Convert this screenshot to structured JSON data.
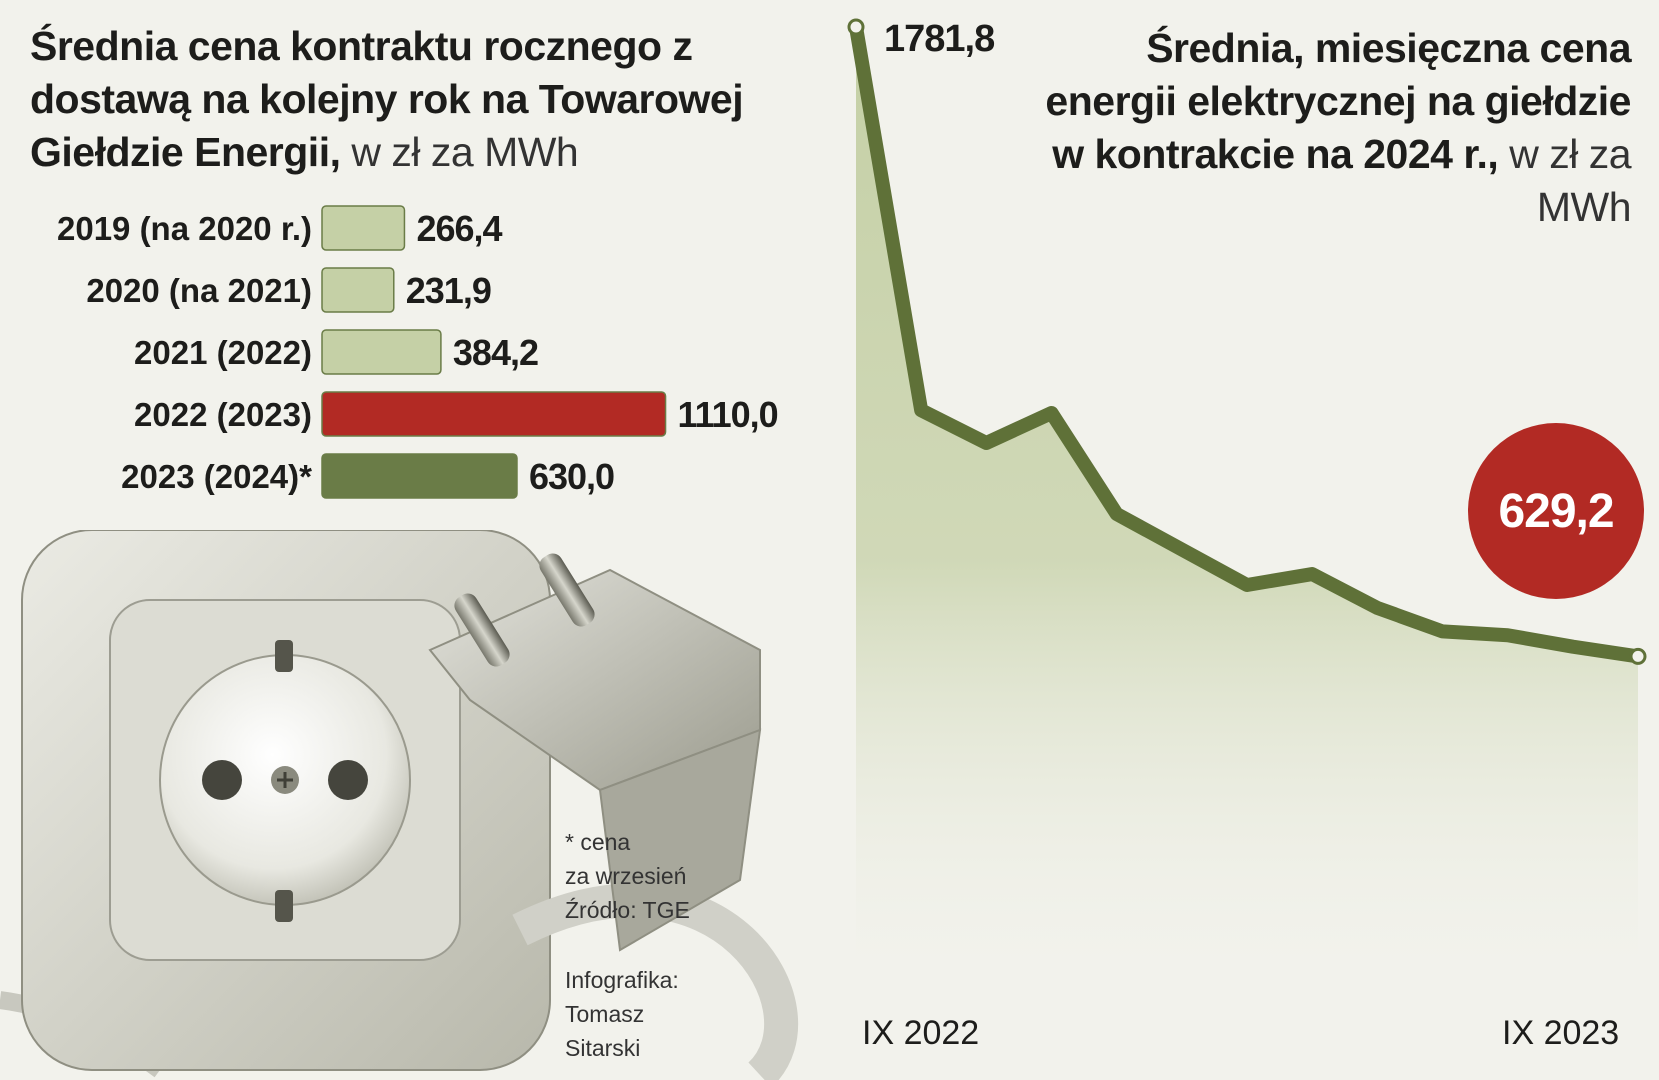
{
  "left_title": {
    "bold": "Średnia cena kontraktu rocznego z dostawą na kolejny rok na Towarowej Giełdzie Energii,",
    "unit": " w zł za MWh"
  },
  "right_title": {
    "bold": "Średnia, miesięczna cena energii elektrycznej na giełdzie w kontrakcie na 2024 r.,",
    "unit": " w zł za MWh"
  },
  "footnote": {
    "line1": "* cena",
    "line2": "za wrzesień",
    "line3": "Źródło: TGE"
  },
  "credit": {
    "line1": "Infografika:",
    "line2": "Tomasz",
    "line3": "Sitarski"
  },
  "colors": {
    "bar_light": "#c5d0a6",
    "bar_red": "#b22a24",
    "bar_green": "#6a7c47",
    "line": "#5f7138",
    "area": "#c5d0a6"
  },
  "chart_data": [
    {
      "type": "bar",
      "orientation": "horizontal",
      "categories": [
        "2019 (na 2020 r.)",
        "2020 (na 2021)",
        "2021 (2022)",
        "2022 (2023)",
        "2023 (2024)*"
      ],
      "values": [
        266.4,
        231.9,
        384.2,
        1110.0,
        630.0
      ],
      "value_labels": [
        "266,4",
        "231,9",
        "384,2",
        "1110,0",
        "630,0"
      ],
      "bar_colors": [
        "#c5d0a6",
        "#c5d0a6",
        "#c5d0a6",
        "#b22a24",
        "#6a7c47"
      ]
    },
    {
      "type": "area",
      "x_labels": [
        "IX 2022",
        "IX 2023"
      ],
      "x": [
        "2022-09",
        "2022-10",
        "2022-11",
        "2022-12",
        "2023-01",
        "2023-02",
        "2023-03",
        "2023-04",
        "2023-05",
        "2023-06",
        "2023-07",
        "2023-08",
        "2023-09"
      ],
      "values": [
        1781.8,
        1080,
        1020,
        1075,
        890,
        825,
        760,
        780,
        718,
        675,
        668,
        647,
        629.2
      ],
      "peak_label": "1781,8",
      "last_label": "629,2",
      "ylim": [
        0,
        1800
      ]
    }
  ]
}
